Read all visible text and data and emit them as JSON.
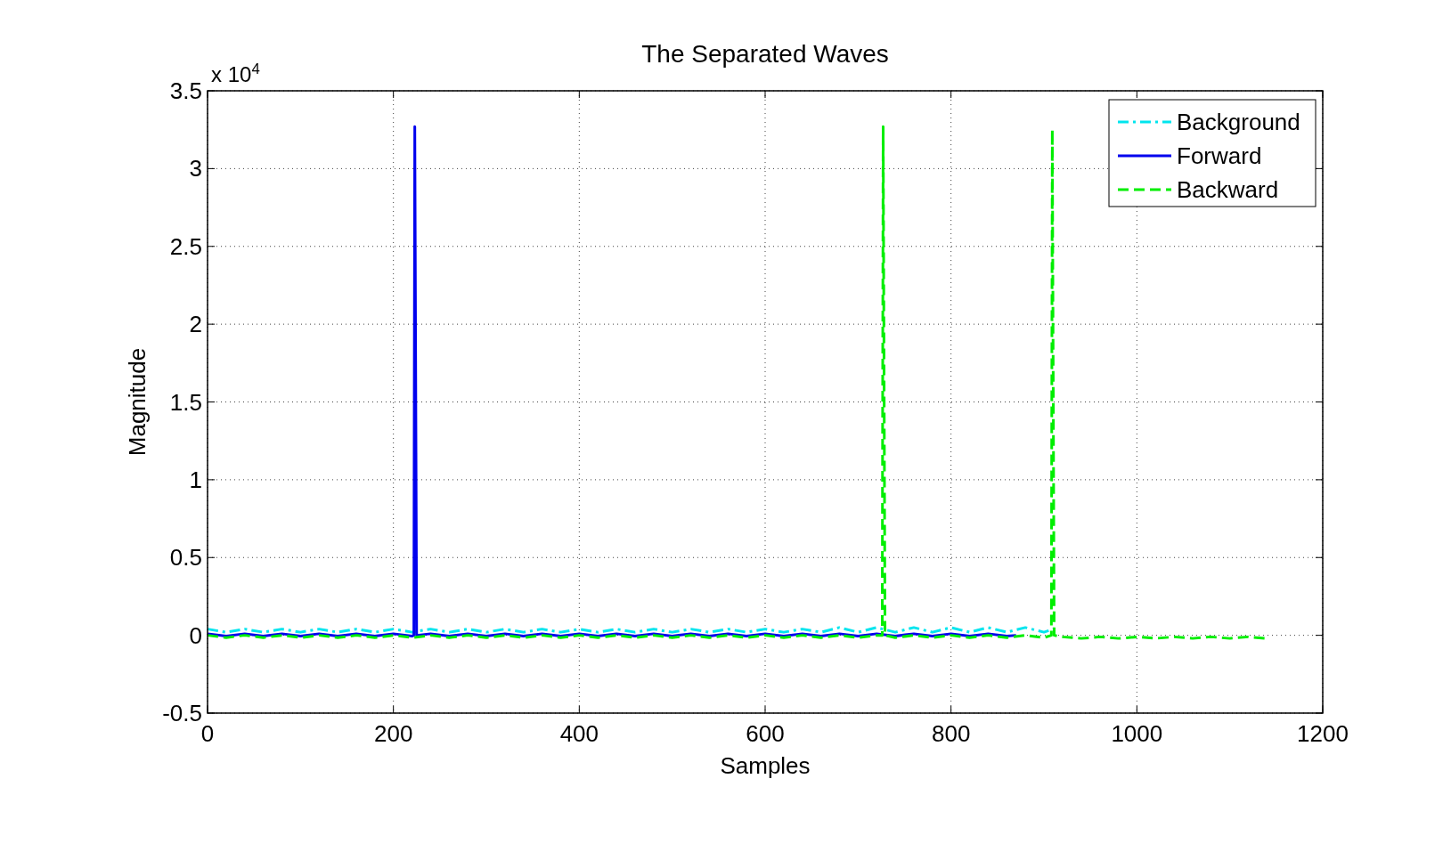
{
  "chart_data": {
    "type": "line",
    "title": "The Separated Waves",
    "xlabel": "Samples",
    "ylabel": "Magnitude",
    "annotations": [
      "x 10$^{4}$"
    ],
    "xlim": [
      0,
      1200
    ],
    "xticks": [
      0,
      200,
      400,
      600,
      800,
      1000,
      1200
    ],
    "ylim": [
      -0.5,
      3.5
    ],
    "yticks": [
      -0.5,
      0,
      0.5,
      1,
      1.5,
      2,
      2.5,
      3,
      3.5
    ],
    "grid": true,
    "legend": "top right",
    "series": [
      {
        "name": "Background",
        "color": "#00e5ee",
        "line_style": "dashdot",
        "x": [
          0,
          20,
          40,
          60,
          80,
          100,
          120,
          140,
          160,
          180,
          200,
          220,
          240,
          260,
          280,
          300,
          320,
          340,
          360,
          380,
          400,
          420,
          440,
          460,
          480,
          500,
          520,
          540,
          560,
          580,
          600,
          620,
          640,
          660,
          680,
          700,
          720,
          740,
          760,
          780,
          800,
          820,
          840,
          860,
          880,
          900,
          910
        ],
        "values": [
          0.04,
          0.02,
          0.04,
          0.02,
          0.04,
          0.02,
          0.04,
          0.02,
          0.04,
          0.02,
          0.04,
          0.02,
          0.04,
          0.02,
          0.04,
          0.02,
          0.04,
          0.02,
          0.04,
          0.02,
          0.04,
          0.02,
          0.04,
          0.02,
          0.04,
          0.02,
          0.04,
          0.02,
          0.04,
          0.02,
          0.04,
          0.02,
          0.04,
          0.02,
          0.05,
          0.02,
          0.05,
          0.02,
          0.05,
          0.02,
          0.05,
          0.02,
          0.05,
          0.02,
          0.05,
          0.02,
          0.04
        ]
      },
      {
        "name": "Forward",
        "color": "#0000ee",
        "line_style": "solid",
        "x": [
          0,
          20,
          40,
          60,
          80,
          100,
          120,
          140,
          160,
          180,
          200,
          220,
          222,
          223,
          224,
          225,
          240,
          260,
          280,
          300,
          320,
          340,
          360,
          380,
          400,
          420,
          440,
          460,
          480,
          500,
          520,
          540,
          560,
          580,
          600,
          620,
          640,
          660,
          680,
          700,
          720,
          740,
          760,
          780,
          800,
          820,
          840,
          860,
          870
        ],
        "values": [
          0.01,
          -0.005,
          0.01,
          -0.005,
          0.01,
          -0.005,
          0.01,
          -0.005,
          0.01,
          -0.005,
          0.01,
          -0.005,
          0,
          3.27,
          1.65,
          0,
          0.01,
          -0.005,
          0.01,
          -0.005,
          0.01,
          -0.005,
          0.01,
          -0.005,
          0.01,
          -0.005,
          0.01,
          -0.005,
          0.01,
          -0.005,
          0.01,
          -0.005,
          0.01,
          -0.005,
          0.01,
          -0.005,
          0.01,
          -0.005,
          0.01,
          -0.005,
          0.01,
          -0.005,
          0.01,
          -0.005,
          0.01,
          -0.005,
          0.01,
          -0.005,
          0
        ]
      },
      {
        "name": "Backward",
        "color": "#00ee00",
        "line_style": "dashed",
        "x": [
          0,
          20,
          40,
          60,
          80,
          100,
          120,
          140,
          160,
          180,
          200,
          220,
          240,
          260,
          280,
          300,
          320,
          340,
          360,
          380,
          400,
          420,
          440,
          460,
          480,
          500,
          520,
          540,
          560,
          580,
          600,
          620,
          640,
          660,
          680,
          700,
          720,
          726,
          727,
          729,
          740,
          760,
          780,
          800,
          820,
          840,
          860,
          880,
          900,
          908,
          909,
          911,
          920,
          940,
          960,
          980,
          1000,
          1020,
          1040,
          1060,
          1080,
          1100,
          1120,
          1140
        ],
        "values": [
          0,
          -0.015,
          0,
          -0.015,
          0,
          -0.015,
          0,
          -0.015,
          0,
          -0.015,
          0,
          -0.015,
          0,
          -0.015,
          0,
          -0.015,
          0,
          -0.015,
          0,
          -0.015,
          0,
          -0.015,
          0,
          -0.015,
          0,
          -0.015,
          0,
          -0.015,
          0,
          -0.015,
          0,
          -0.015,
          0,
          -0.015,
          0,
          -0.015,
          0,
          0,
          3.27,
          0,
          -0.015,
          0,
          -0.015,
          0,
          -0.015,
          0,
          -0.015,
          0,
          -0.015,
          0,
          3.25,
          0,
          -0.01,
          -0.02,
          -0.01,
          -0.02,
          -0.01,
          -0.02,
          -0.01,
          -0.02,
          -0.01,
          -0.02,
          -0.01,
          -0.02
        ]
      }
    ]
  }
}
